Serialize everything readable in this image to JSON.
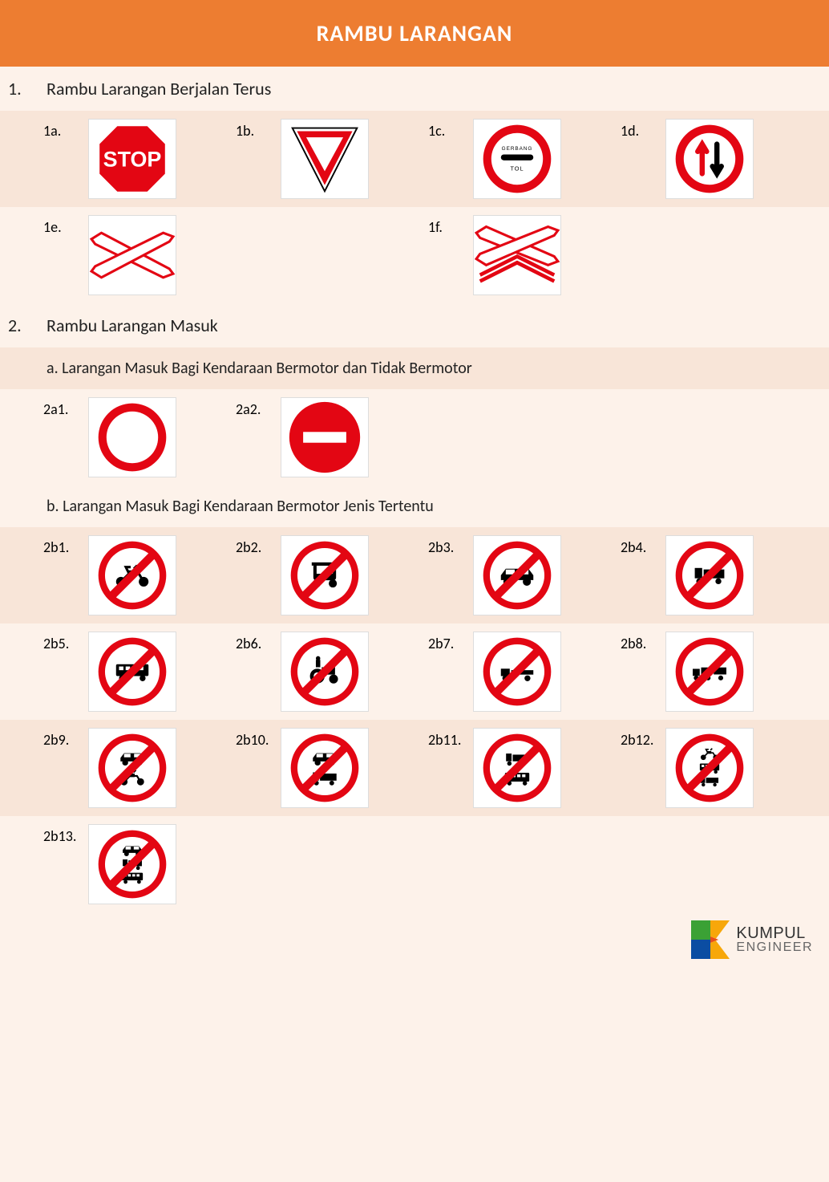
{
  "colors": {
    "header_bg": "#ed7d31",
    "page_bg": "#fdf2ea",
    "row_alt": "#f8e5d8",
    "sign_red": "#e30613",
    "sign_black": "#000000",
    "sign_white": "#ffffff"
  },
  "header": {
    "title": "RAMBU LARANGAN"
  },
  "sections": [
    {
      "num": "1.",
      "title": "Rambu Larangan Berjalan Terus",
      "rows": [
        [
          {
            "label": "1a.",
            "sign": "stop"
          },
          {
            "label": "1b.",
            "sign": "yield"
          },
          {
            "label": "1c.",
            "sign": "gerbang-tol"
          },
          {
            "label": "1d.",
            "sign": "priority-oncoming"
          }
        ],
        [
          {
            "label": "1e.",
            "sign": "cross-single"
          },
          {
            "label": "",
            "sign": ""
          },
          {
            "label": "1f.",
            "sign": "cross-double"
          },
          {
            "label": "",
            "sign": ""
          }
        ]
      ]
    },
    {
      "num": "2.",
      "title": "Rambu Larangan Masuk",
      "subs": [
        {
          "title": "a. Larangan Masuk Bagi Kendaraan Bermotor dan Tidak Bermotor",
          "rows": [
            [
              {
                "label": "2a1.",
                "sign": "no-entry-ring"
              },
              {
                "label": "2a2.",
                "sign": "no-entry-bar"
              },
              {
                "label": "",
                "sign": ""
              },
              {
                "label": "",
                "sign": ""
              }
            ]
          ]
        },
        {
          "title": "b. Larangan Masuk Bagi Kendaraan Bermotor Jenis Tertentu",
          "rows": [
            [
              {
                "label": "2b1.",
                "sign": "no-motorcycle"
              },
              {
                "label": "2b2.",
                "sign": "no-bajaj"
              },
              {
                "label": "2b3.",
                "sign": "no-car"
              },
              {
                "label": "2b4.",
                "sign": "no-truck"
              }
            ],
            [
              {
                "label": "2b5.",
                "sign": "no-bus"
              },
              {
                "label": "2b6.",
                "sign": "no-tractor"
              },
              {
                "label": "2b7.",
                "sign": "no-trailer"
              },
              {
                "label": "2b8.",
                "sign": "no-long-trailer"
              }
            ],
            [
              {
                "label": "2b9.",
                "sign": "no-car-motor"
              },
              {
                "label": "2b10.",
                "sign": "no-car-truck"
              },
              {
                "label": "2b11.",
                "sign": "no-truck-bus"
              },
              {
                "label": "2b12.",
                "sign": "no-motor-bus-truck"
              }
            ],
            [
              {
                "label": "2b13.",
                "sign": "no-car-truck-bus"
              },
              {
                "label": "",
                "sign": ""
              },
              {
                "label": "",
                "sign": ""
              },
              {
                "label": "",
                "sign": ""
              }
            ]
          ]
        }
      ]
    }
  ],
  "gerbang_tol_text": {
    "top": "GERBANG",
    "bottom": "TOL"
  },
  "stop_text": "STOP",
  "footer": {
    "brand_line1": "KUMPUL",
    "brand_line2": "ENGINEER",
    "logo_colors": {
      "bg1": "#3ba135",
      "bg2": "#0b4da2",
      "accent": "#f7a70a",
      "accent2": "#e94e1b"
    }
  }
}
